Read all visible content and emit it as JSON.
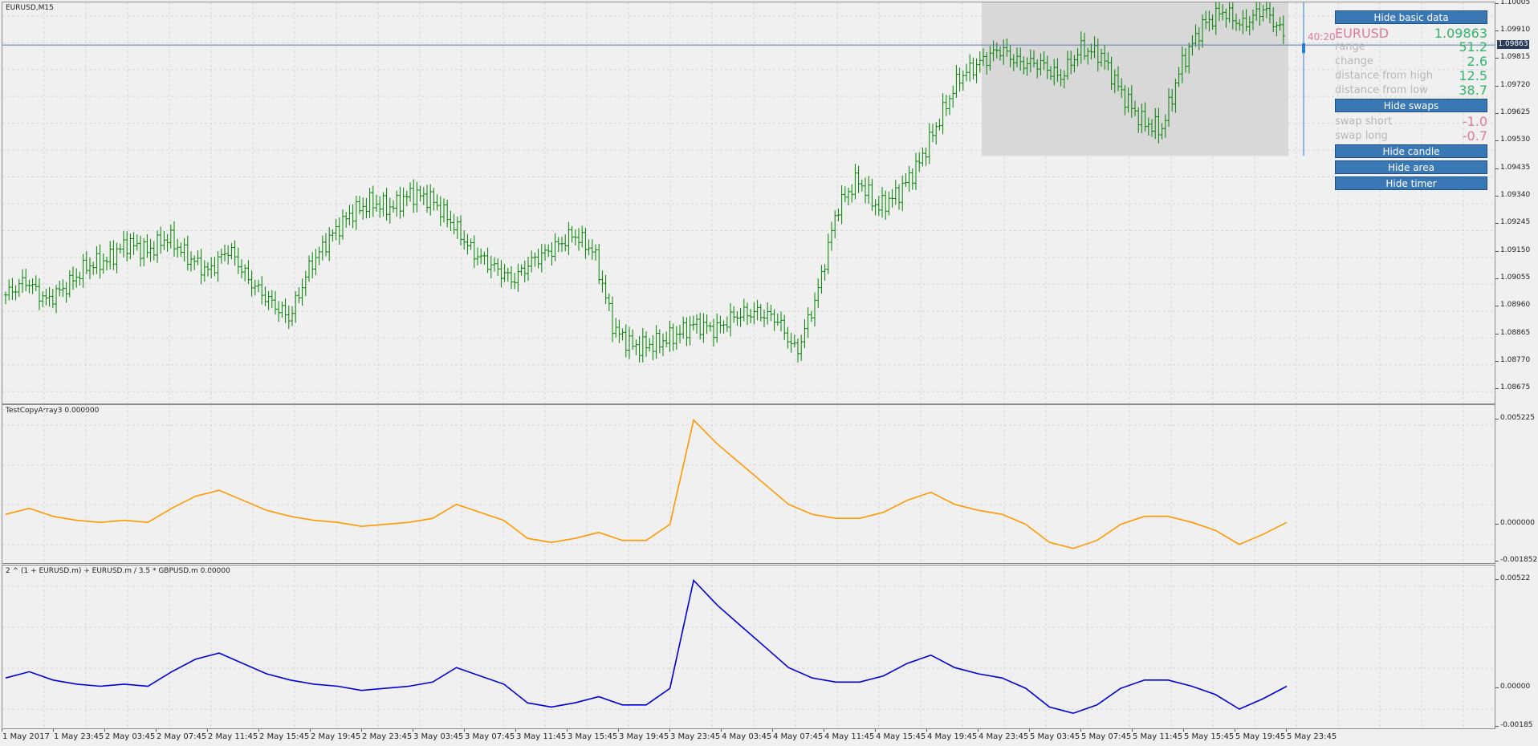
{
  "chart_header": "EURUSD,M15",
  "indicator1_title": "TestCopyArray3 0.000000",
  "indicator2_title": "2 ^ (1 + EURUSD.m) + EURUSD.m / 3.5 * GBPUSD.m 0.00000",
  "price_scale": [
    "1.10005",
    "1.09910",
    "1.09815",
    "1.09720",
    "1.09625",
    "1.09530",
    "1.09435",
    "1.09340",
    "1.09245",
    "1.09150",
    "1.09055",
    "1.08960",
    "1.08865",
    "1.08770",
    "1.08675"
  ],
  "current_price": "1.09863",
  "ind1_scale": [
    "0.005225",
    "0.000000",
    "-0.001852"
  ],
  "ind2_scale": [
    "0.00522",
    "0.00000",
    "-0.00185"
  ],
  "time_labels": [
    "1 May 2017",
    "1 May 23:45",
    "2 May 03:45",
    "2 May 07:45",
    "2 May 11:45",
    "2 May 15:45",
    "2 May 19:45",
    "2 May 23:45",
    "3 May 03:45",
    "3 May 07:45",
    "3 May 11:45",
    "3 May 15:45",
    "3 May 19:45",
    "3 May 23:45",
    "4 May 03:45",
    "4 May 07:45",
    "4 May 11:45",
    "4 May 15:45",
    "4 May 19:45",
    "4 May 23:45",
    "5 May 03:45",
    "5 May 07:45",
    "5 May 11:45",
    "5 May 15:45",
    "5 May 19:45",
    "5 May 23:45"
  ],
  "timer": "40:20",
  "panel": {
    "hide_basic_data": "Hide basic data",
    "symbol": "EURUSD",
    "price": "1.09863",
    "rows": [
      {
        "key": "range",
        "value": "51.2"
      },
      {
        "key": "change",
        "value": "2.6"
      },
      {
        "key": "distance from high",
        "value": "12.5"
      },
      {
        "key": "distance from low",
        "value": "38.7"
      }
    ],
    "hide_swaps": "Hide swaps",
    "swaps": [
      {
        "key": "swap short",
        "value": "-1.0"
      },
      {
        "key": "swap long",
        "value": "-0.7"
      }
    ],
    "hide_candle": "Hide candle",
    "hide_area": "Hide area",
    "hide_timer": "Hide timer"
  },
  "colors": {
    "bars": "#008000",
    "ind1_line": "#ff9900",
    "ind2_line": "#0000dd",
    "button": "#3a78b5",
    "value_green": "#35b46b",
    "value_red": "#e07a9a",
    "area_fill": "#d8d8d8"
  },
  "chart_data": [
    {
      "type": "line",
      "title": "EURUSD,M15",
      "ylim": [
        1.0862,
        1.1001
      ],
      "points_close": [
        1.09,
        1.0905,
        1.0898,
        1.0903,
        1.091,
        1.0912,
        1.0918,
        1.0915,
        1.092,
        1.0913,
        1.0908,
        1.0916,
        1.0905,
        1.0898,
        1.0892,
        1.091,
        1.092,
        1.0928,
        1.0932,
        1.093,
        1.0935,
        1.0933,
        1.0925,
        1.0915,
        1.091,
        1.0905,
        1.0912,
        1.0916,
        1.0921,
        1.0915,
        1.0888,
        1.0882,
        1.0883,
        1.0886,
        1.089,
        1.0888,
        1.0893,
        1.0894,
        1.0892,
        1.088,
        1.09,
        1.093,
        1.094,
        1.093,
        1.0935,
        1.0945,
        1.096,
        1.0975,
        1.098,
        1.0985,
        1.098,
        1.098,
        1.0975,
        1.0985,
        1.0983,
        1.097,
        1.096,
        1.0957,
        1.098,
        1.0993,
        1.0998,
        1.0993,
        1.0999,
        1.099
      ]
    },
    {
      "type": "line",
      "title": "TestCopyArray3 0.000000",
      "ylim": [
        -0.001852,
        0.005225
      ],
      "values": [
        0.0005,
        0.0008,
        0.0004,
        0.0002,
        0.0001,
        0.0002,
        0.0001,
        0.0008,
        0.0014,
        0.0017,
        0.0012,
        0.0007,
        0.0004,
        0.0002,
        0.0001,
        -0.0001,
        0.0,
        0.0001,
        0.0003,
        0.001,
        0.0006,
        0.0002,
        -0.0007,
        -0.0009,
        -0.0007,
        -0.0004,
        -0.0008,
        -0.0008,
        0.0,
        0.0052,
        0.004,
        0.003,
        0.002,
        0.001,
        0.0005,
        0.0003,
        0.0003,
        0.0006,
        0.0012,
        0.0016,
        0.001,
        0.0007,
        0.0005,
        0.0,
        -0.0009,
        -0.0012,
        -0.0008,
        0.0,
        0.0004,
        0.0004,
        0.0001,
        -0.0003,
        -0.001,
        -0.0005,
        0.0001
      ]
    },
    {
      "type": "line",
      "title": "2 ^ (1 + EURUSD.m) + EURUSD.m / 3.5 * GBPUSD.m 0.00000",
      "ylim": [
        -0.00185,
        0.00522
      ],
      "values": [
        0.0005,
        0.0008,
        0.0004,
        0.0002,
        0.0001,
        0.0002,
        0.0001,
        0.0008,
        0.0014,
        0.0017,
        0.0012,
        0.0007,
        0.0004,
        0.0002,
        0.0001,
        -0.0001,
        0.0,
        0.0001,
        0.0003,
        0.001,
        0.0006,
        0.0002,
        -0.0007,
        -0.0009,
        -0.0007,
        -0.0004,
        -0.0008,
        -0.0008,
        0.0,
        0.0052,
        0.004,
        0.003,
        0.002,
        0.001,
        0.0005,
        0.0003,
        0.0003,
        0.0006,
        0.0012,
        0.0016,
        0.001,
        0.0007,
        0.0005,
        0.0,
        -0.0009,
        -0.0012,
        -0.0008,
        0.0,
        0.0004,
        0.0004,
        0.0001,
        -0.0003,
        -0.001,
        -0.0005,
        0.0001
      ]
    }
  ]
}
